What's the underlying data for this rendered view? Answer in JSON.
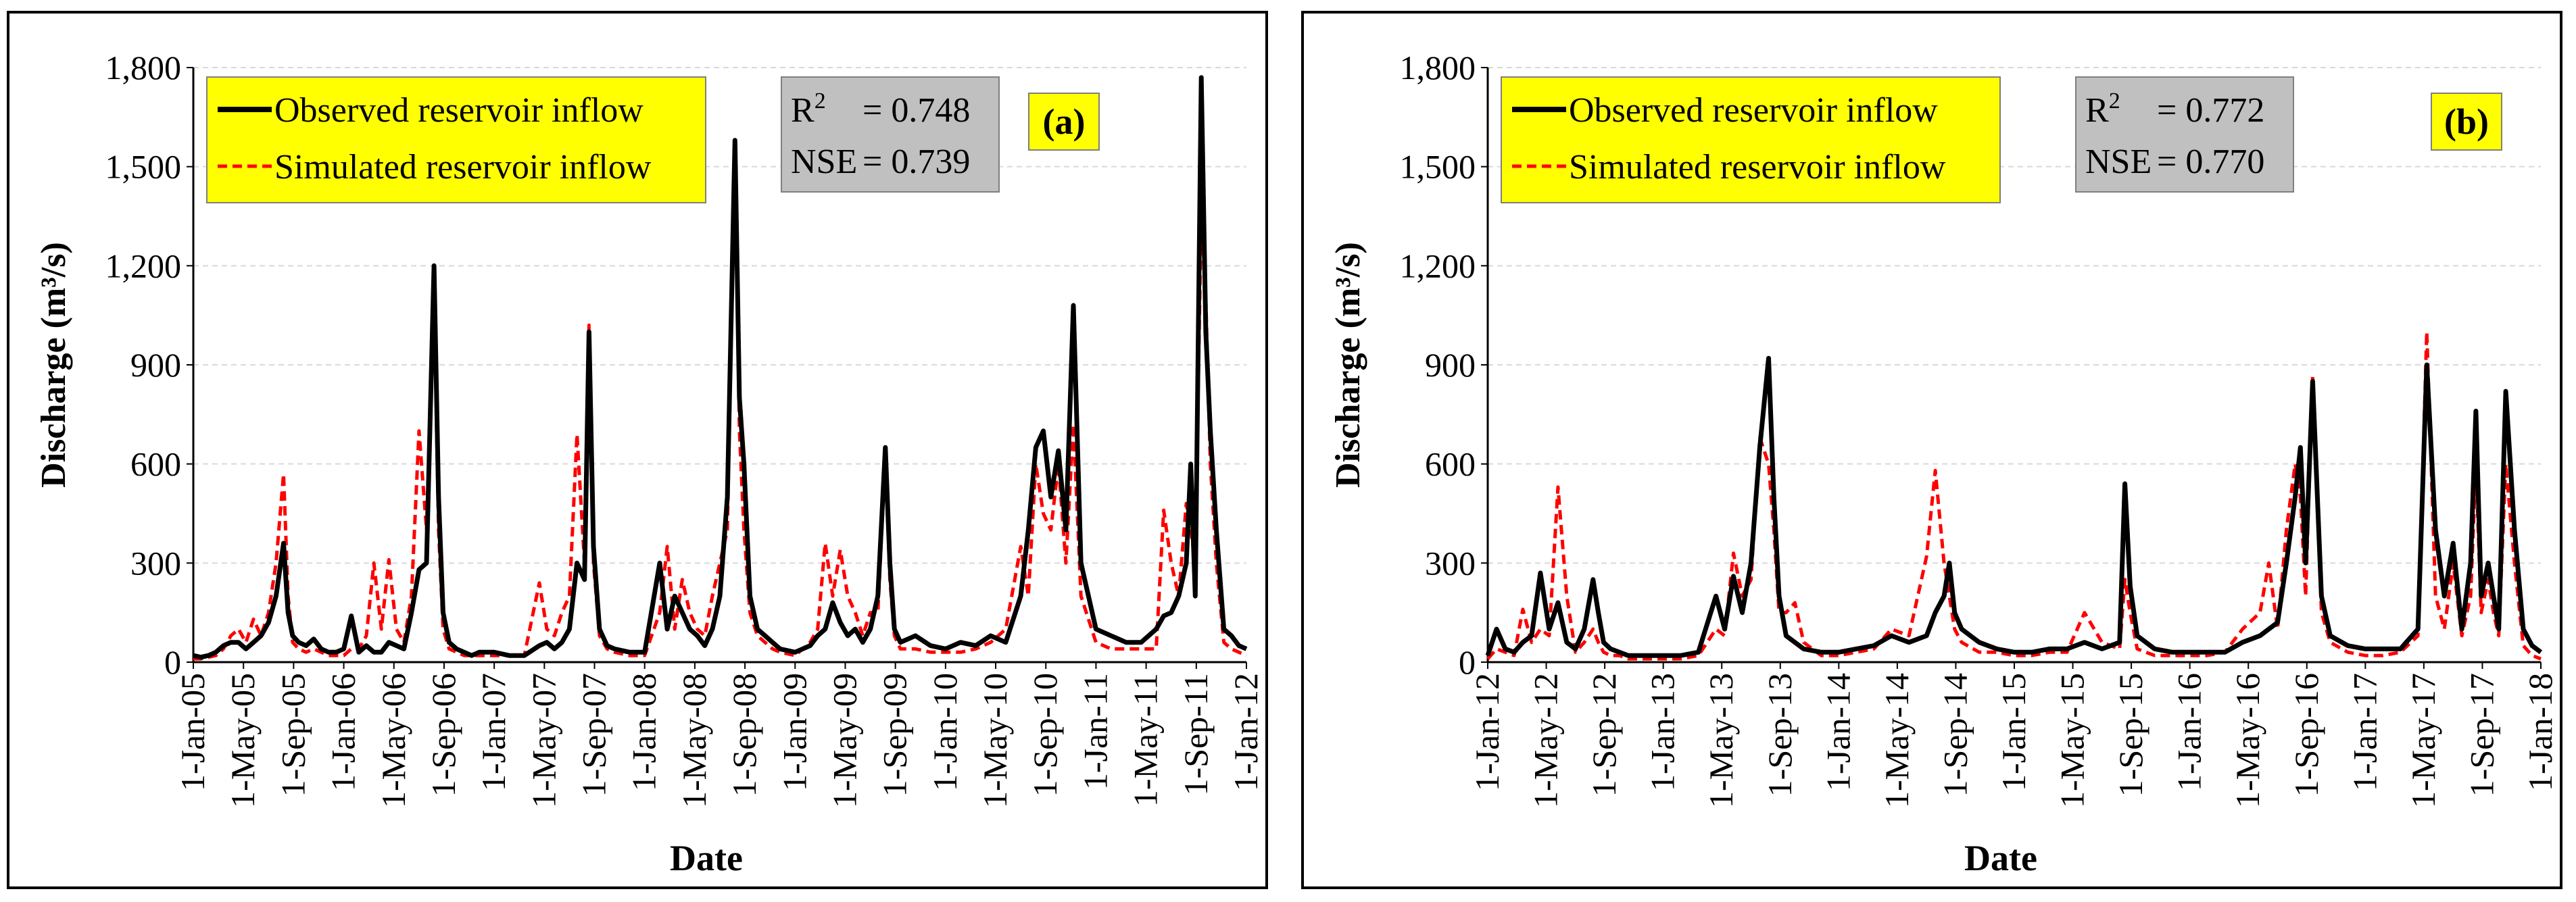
{
  "figure": {
    "panels": [
      "a",
      "b"
    ]
  },
  "colors": {
    "observed": "#000000",
    "simulated": "#ff0000",
    "legend_bg": "#ffff00",
    "stats_bg": "#c0c0c0",
    "grid": "#d9d9d9"
  },
  "chart_data": [
    {
      "type": "line",
      "panel_label": "(a)",
      "xlabel": "Date",
      "ylabel": "Discharge (m³/s)",
      "ylim": [
        0,
        1800
      ],
      "yticks": [
        "0",
        "300",
        "600",
        "900",
        "1,200",
        "1,500",
        "1,800"
      ],
      "ytick_values": [
        0,
        300,
        600,
        900,
        1200,
        1500,
        1800
      ],
      "xlim_year": [
        2005.0,
        2012.0
      ],
      "xtick_labels": [
        "1-Jan-05",
        "1-May-05",
        "1-Sep-05",
        "1-Jan-06",
        "1-May-06",
        "1-Sep-06",
        "1-Jan-07",
        "1-May-07",
        "1-Sep-07",
        "1-Jan-08",
        "1-May-08",
        "1-Sep-08",
        "1-Jan-09",
        "1-May-09",
        "1-Sep-09",
        "1-Jan-10",
        "1-May-10",
        "1-Sep-10",
        "1-Jan-11",
        "1-May-11",
        "1-Sep-11",
        "1-Jan-12"
      ],
      "legend": [
        "Observed reservoir inflow",
        "Simulated reservoir inflow"
      ],
      "stats": {
        "r2_label": "R",
        "r2_sup": "2",
        "r2_value": "=   0.748",
        "nse_label": "NSE",
        "nse_value": "=  0.739"
      },
      "series": [
        {
          "name": "Observed reservoir inflow",
          "x": [
            2005.0,
            2005.05,
            2005.1,
            2005.15,
            2005.2,
            2005.25,
            2005.3,
            2005.35,
            2005.4,
            2005.45,
            2005.5,
            2005.55,
            2005.6,
            2005.63,
            2005.66,
            2005.7,
            2005.75,
            2005.8,
            2005.85,
            2005.9,
            2005.95,
            2006.0,
            2006.05,
            2006.1,
            2006.15,
            2006.2,
            2006.25,
            2006.3,
            2006.35,
            2006.4,
            2006.45,
            2006.5,
            2006.55,
            2006.6,
            2006.63,
            2006.66,
            2006.7,
            2006.75,
            2006.8,
            2006.85,
            2006.9,
            2007.0,
            2007.1,
            2007.2,
            2007.3,
            2007.35,
            2007.4,
            2007.45,
            2007.5,
            2007.55,
            2007.6,
            2007.63,
            2007.66,
            2007.7,
            2007.75,
            2007.8,
            2007.9,
            2008.0,
            2008.1,
            2008.15,
            2008.2,
            2008.25,
            2008.3,
            2008.35,
            2008.4,
            2008.45,
            2008.5,
            2008.55,
            2008.6,
            2008.63,
            2008.66,
            2008.7,
            2008.75,
            2008.8,
            2008.85,
            2008.9,
            2009.0,
            2009.1,
            2009.15,
            2009.2,
            2009.25,
            2009.3,
            2009.35,
            2009.4,
            2009.45,
            2009.5,
            2009.55,
            2009.6,
            2009.63,
            2009.66,
            2009.7,
            2009.8,
            2009.9,
            2010.0,
            2010.1,
            2010.2,
            2010.3,
            2010.4,
            2010.5,
            2010.55,
            2010.6,
            2010.65,
            2010.7,
            2010.75,
            2010.8,
            2010.85,
            2010.9,
            2011.0,
            2011.1,
            2011.2,
            2011.3,
            2011.4,
            2011.45,
            2011.5,
            2011.55,
            2011.6,
            2011.63,
            2011.66,
            2011.7,
            2011.73,
            2011.76,
            2011.8,
            2011.85,
            2011.9,
            2011.95,
            2012.0
          ],
          "values": [
            20,
            15,
            20,
            30,
            50,
            60,
            60,
            40,
            60,
            80,
            120,
            200,
            360,
            150,
            80,
            60,
            50,
            70,
            40,
            30,
            30,
            40,
            140,
            30,
            50,
            30,
            30,
            60,
            50,
            40,
            150,
            280,
            300,
            1200,
            500,
            150,
            60,
            40,
            30,
            20,
            30,
            30,
            20,
            20,
            50,
            60,
            40,
            60,
            100,
            300,
            250,
            1000,
            350,
            100,
            50,
            40,
            30,
            30,
            300,
            100,
            200,
            150,
            100,
            80,
            50,
            100,
            200,
            500,
            1580,
            800,
            600,
            200,
            100,
            80,
            60,
            40,
            30,
            50,
            80,
            100,
            180,
            120,
            80,
            100,
            60,
            100,
            200,
            650,
            300,
            100,
            60,
            80,
            50,
            40,
            60,
            50,
            80,
            60,
            200,
            400,
            650,
            700,
            500,
            640,
            400,
            1080,
            300,
            100,
            80,
            60,
            60,
            100,
            140,
            150,
            200,
            300,
            600,
            200,
            1770,
            1000,
            700,
            400,
            100,
            80,
            50,
            40
          ]
        },
        {
          "name": "Simulated reservoir inflow",
          "x": [
            2005.0,
            2005.05,
            2005.1,
            2005.15,
            2005.2,
            2005.25,
            2005.3,
            2005.35,
            2005.4,
            2005.45,
            2005.5,
            2005.55,
            2005.6,
            2005.63,
            2005.66,
            2005.7,
            2005.75,
            2005.8,
            2005.85,
            2005.9,
            2005.95,
            2006.0,
            2006.05,
            2006.1,
            2006.15,
            2006.2,
            2006.25,
            2006.3,
            2006.35,
            2006.4,
            2006.45,
            2006.5,
            2006.55,
            2006.6,
            2006.63,
            2006.66,
            2006.7,
            2006.75,
            2006.8,
            2006.85,
            2006.9,
            2007.0,
            2007.1,
            2007.2,
            2007.3,
            2007.35,
            2007.4,
            2007.45,
            2007.5,
            2007.55,
            2007.6,
            2007.63,
            2007.66,
            2007.7,
            2007.75,
            2007.8,
            2007.9,
            2008.0,
            2008.1,
            2008.15,
            2008.2,
            2008.25,
            2008.3,
            2008.35,
            2008.4,
            2008.45,
            2008.5,
            2008.55,
            2008.6,
            2008.63,
            2008.66,
            2008.7,
            2008.75,
            2008.8,
            2008.85,
            2008.9,
            2009.0,
            2009.1,
            2009.15,
            2009.2,
            2009.25,
            2009.3,
            2009.35,
            2009.4,
            2009.45,
            2009.5,
            2009.55,
            2009.6,
            2009.63,
            2009.66,
            2009.7,
            2009.8,
            2009.9,
            2010.0,
            2010.1,
            2010.2,
            2010.3,
            2010.4,
            2010.5,
            2010.55,
            2010.6,
            2010.65,
            2010.7,
            2010.75,
            2010.8,
            2010.85,
            2010.9,
            2011.0,
            2011.1,
            2011.2,
            2011.3,
            2011.4,
            2011.45,
            2011.5,
            2011.55,
            2011.6,
            2011.63,
            2011.66,
            2011.7,
            2011.73,
            2011.76,
            2011.8,
            2011.85,
            2011.9,
            2011.95,
            2012.0
          ],
          "values": [
            10,
            10,
            15,
            20,
            40,
            80,
            100,
            60,
            130,
            80,
            150,
            300,
            570,
            200,
            60,
            40,
            30,
            40,
            30,
            20,
            20,
            20,
            40,
            40,
            80,
            300,
            100,
            310,
            100,
            60,
            200,
            700,
            400,
            1100,
            400,
            100,
            40,
            30,
            20,
            20,
            20,
            20,
            20,
            20,
            240,
            100,
            80,
            150,
            200,
            690,
            300,
            1020,
            300,
            80,
            40,
            30,
            20,
            20,
            150,
            350,
            100,
            250,
            150,
            100,
            80,
            200,
            300,
            400,
            1560,
            700,
            400,
            150,
            80,
            60,
            40,
            30,
            20,
            60,
            100,
            360,
            200,
            340,
            200,
            150,
            80,
            150,
            150,
            620,
            250,
            80,
            40,
            40,
            30,
            30,
            30,
            40,
            60,
            100,
            350,
            200,
            600,
            450,
            400,
            600,
            300,
            720,
            200,
            60,
            40,
            40,
            40,
            40,
            460,
            300,
            200,
            480,
            400,
            300,
            1370,
            1100,
            600,
            300,
            60,
            40,
            30,
            20
          ]
        }
      ]
    },
    {
      "type": "line",
      "panel_label": "(b)",
      "xlabel": "Date",
      "ylabel": "Discharge (m³/s)",
      "ylim": [
        0,
        1800
      ],
      "yticks": [
        "0",
        "300",
        "600",
        "900",
        "1,200",
        "1,500",
        "1,800"
      ],
      "ytick_values": [
        0,
        300,
        600,
        900,
        1200,
        1500,
        1800
      ],
      "xlim_year": [
        2012.0,
        2018.0
      ],
      "xtick_labels": [
        "1-Jan-12",
        "1-May-12",
        "1-Sep-12",
        "1-Jan-13",
        "1-May-13",
        "1-Sep-13",
        "1-Jan-14",
        "1-May-14",
        "1-Sep-14",
        "1-Jan-15",
        "1-May-15",
        "1-Sep-15",
        "1-Jan-16",
        "1-May-16",
        "1-Sep-16",
        "1-Jan-17",
        "1-May-17",
        "1-Sep-17",
        "1-Jan-18"
      ],
      "legend": [
        "Observed reservoir inflow",
        "Simulated reservoir inflow"
      ],
      "stats": {
        "r2_label": "R",
        "r2_sup": "2",
        "r2_value": "=  0.772",
        "nse_label": "NSE",
        "nse_value": "=  0.770"
      },
      "series": [
        {
          "name": "Observed reservoir inflow",
          "x": [
            2012.0,
            2012.05,
            2012.1,
            2012.15,
            2012.2,
            2012.25,
            2012.3,
            2012.35,
            2012.4,
            2012.45,
            2012.5,
            2012.55,
            2012.6,
            2012.63,
            2012.66,
            2012.7,
            2012.75,
            2012.8,
            2012.9,
            2013.0,
            2013.1,
            2013.2,
            2013.3,
            2013.35,
            2013.4,
            2013.45,
            2013.5,
            2013.55,
            2013.6,
            2013.63,
            2013.66,
            2013.7,
            2013.75,
            2013.8,
            2013.9,
            2014.0,
            2014.1,
            2014.2,
            2014.3,
            2014.4,
            2014.5,
            2014.55,
            2014.6,
            2014.63,
            2014.66,
            2014.7,
            2014.8,
            2014.9,
            2015.0,
            2015.1,
            2015.2,
            2015.3,
            2015.4,
            2015.5,
            2015.6,
            2015.63,
            2015.66,
            2015.7,
            2015.8,
            2015.9,
            2016.0,
            2016.1,
            2016.2,
            2016.3,
            2016.4,
            2016.45,
            2016.5,
            2016.55,
            2016.6,
            2016.63,
            2016.66,
            2016.7,
            2016.75,
            2016.8,
            2016.9,
            2017.0,
            2017.1,
            2017.2,
            2017.3,
            2017.35,
            2017.4,
            2017.45,
            2017.5,
            2017.55,
            2017.6,
            2017.63,
            2017.66,
            2017.7,
            2017.73,
            2017.76,
            2017.8,
            2017.85,
            2017.9,
            2017.95,
            2018.0
          ],
          "values": [
            20,
            100,
            40,
            30,
            60,
            80,
            270,
            100,
            180,
            60,
            40,
            100,
            250,
            150,
            60,
            40,
            30,
            20,
            20,
            20,
            20,
            30,
            200,
            100,
            260,
            150,
            300,
            650,
            920,
            500,
            200,
            80,
            60,
            40,
            30,
            30,
            40,
            50,
            80,
            60,
            80,
            150,
            200,
            300,
            150,
            100,
            60,
            40,
            30,
            30,
            40,
            40,
            60,
            40,
            60,
            540,
            230,
            80,
            40,
            30,
            30,
            30,
            30,
            60,
            80,
            100,
            120,
            300,
            500,
            650,
            300,
            850,
            200,
            80,
            50,
            40,
            40,
            40,
            100,
            900,
            400,
            200,
            360,
            100,
            300,
            760,
            200,
            300,
            200,
            100,
            820,
            400,
            100,
            50,
            30
          ]
        },
        {
          "name": "Simulated reservoir inflow",
          "x": [
            2012.0,
            2012.05,
            2012.1,
            2012.15,
            2012.2,
            2012.25,
            2012.3,
            2012.35,
            2012.4,
            2012.45,
            2012.5,
            2012.55,
            2012.6,
            2012.63,
            2012.66,
            2012.7,
            2012.75,
            2012.8,
            2012.9,
            2013.0,
            2013.1,
            2013.2,
            2013.3,
            2013.35,
            2013.4,
            2013.45,
            2013.5,
            2013.55,
            2013.6,
            2013.63,
            2013.66,
            2013.7,
            2013.75,
            2013.8,
            2013.9,
            2014.0,
            2014.1,
            2014.2,
            2014.3,
            2014.4,
            2014.5,
            2014.55,
            2014.6,
            2014.63,
            2014.66,
            2014.7,
            2014.8,
            2014.9,
            2015.0,
            2015.1,
            2015.2,
            2015.3,
            2015.4,
            2015.5,
            2015.6,
            2015.63,
            2015.66,
            2015.7,
            2015.8,
            2015.9,
            2016.0,
            2016.1,
            2016.2,
            2016.3,
            2016.4,
            2016.45,
            2016.5,
            2016.55,
            2016.6,
            2016.63,
            2016.66,
            2016.7,
            2016.75,
            2016.8,
            2016.9,
            2017.0,
            2017.1,
            2017.2,
            2017.3,
            2017.35,
            2017.4,
            2017.45,
            2017.5,
            2017.55,
            2017.6,
            2017.63,
            2017.66,
            2017.7,
            2017.73,
            2017.76,
            2017.8,
            2017.85,
            2017.9,
            2017.95,
            2018.0
          ],
          "values": [
            10,
            40,
            30,
            20,
            160,
            60,
            100,
            80,
            530,
            200,
            30,
            60,
            100,
            60,
            30,
            20,
            20,
            10,
            10,
            10,
            10,
            20,
            100,
            80,
            330,
            200,
            250,
            680,
            600,
            400,
            150,
            150,
            180,
            60,
            20,
            20,
            30,
            40,
            100,
            80,
            320,
            580,
            300,
            200,
            100,
            60,
            30,
            30,
            20,
            20,
            30,
            30,
            150,
            60,
            40,
            250,
            150,
            40,
            20,
            20,
            20,
            20,
            30,
            100,
            150,
            300,
            100,
            400,
            600,
            500,
            200,
            870,
            150,
            60,
            30,
            20,
            20,
            30,
            80,
            1000,
            200,
            100,
            300,
            80,
            200,
            600,
            150,
            250,
            150,
            80,
            600,
            300,
            50,
            20,
            10
          ]
        }
      ]
    }
  ]
}
